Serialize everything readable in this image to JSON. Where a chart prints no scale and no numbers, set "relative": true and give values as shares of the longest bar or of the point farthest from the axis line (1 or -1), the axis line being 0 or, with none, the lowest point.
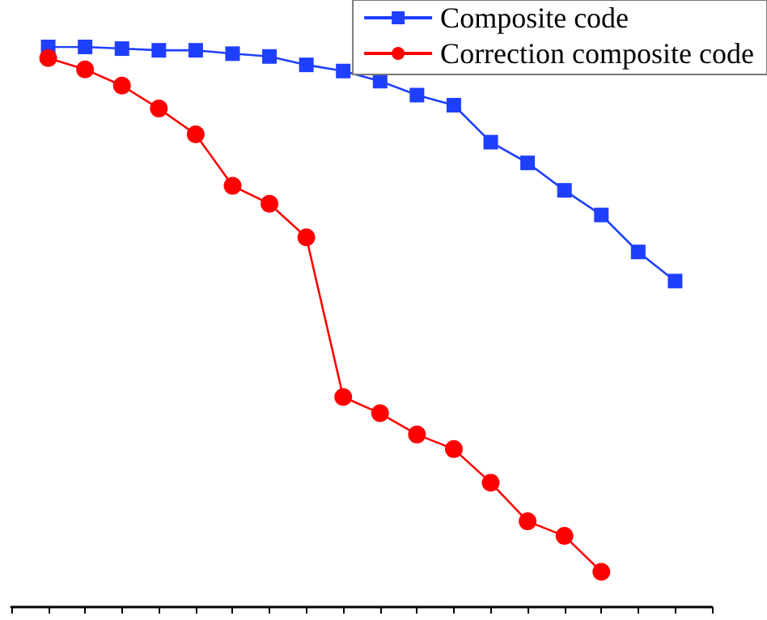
{
  "chart_data": {
    "type": "line",
    "relative": true,
    "grid": false,
    "legend": "top right",
    "categories": [
      null,
      null,
      null,
      null,
      null,
      null,
      null,
      null,
      null,
      null,
      null,
      null,
      null,
      null,
      null,
      null,
      null,
      null,
      null,
      null
    ],
    "series": [
      {
        "name": "Composite code",
        "color": "#1f3fff",
        "marker": "square",
        "values": [
          null,
          1,
          1,
          0.997,
          0.994,
          0.994,
          0.988,
          0.983,
          0.968,
          0.957,
          0.939,
          0.914,
          0.896,
          0.83,
          0.793,
          0.744,
          0.7,
          0.634,
          0.582,
          null
        ]
      },
      {
        "name": "Correction composite code",
        "color": "#ff0000",
        "marker": "circle",
        "values": [
          null,
          0.98,
          0.96,
          0.931,
          0.89,
          0.844,
          0.752,
          0.72,
          0.66,
          0.375,
          0.346,
          0.308,
          0.282,
          0.222,
          0.153,
          0.127,
          0.063,
          null,
          null,
          null
        ]
      }
    ]
  }
}
